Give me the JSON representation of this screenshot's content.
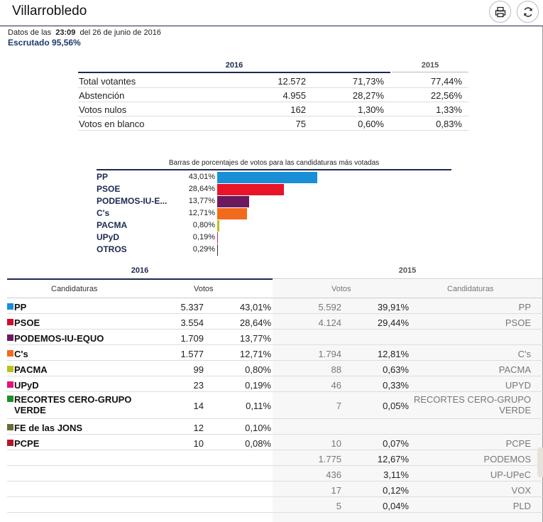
{
  "header": {
    "title": "Villarrobledo",
    "print_icon": "printer-icon",
    "refresh_icon": "refresh-icon"
  },
  "meta": {
    "prefix": "Datos de las",
    "time": "23:09",
    "date_text": "del 26 de junio de 2016",
    "scrutiny": "Escrutado 95,56%"
  },
  "summary": {
    "year_2016": "2016",
    "year_2015": "2015",
    "rows": [
      {
        "label": "Total votantes",
        "votes": "12.572",
        "pct_2016": "71,73%",
        "pct_2015": "77,44%"
      },
      {
        "label": "Abstención",
        "votes": "4.955",
        "pct_2016": "28,27%",
        "pct_2015": "22,56%"
      },
      {
        "label": "Votos nulos",
        "votes": "162",
        "pct_2016": "1,30%",
        "pct_2015": "1,33%"
      },
      {
        "label": "Votos en blanco",
        "votes": "75",
        "pct_2016": "0,60%",
        "pct_2015": "0,83%"
      }
    ]
  },
  "bars": {
    "title": "Barras de porcentajes de votos para las candidaturas más votadas",
    "items": [
      {
        "label": "PP",
        "pct": "43,01%",
        "value": 43.01,
        "color": "#1a8fd8"
      },
      {
        "label": "PSOE",
        "pct": "28,64%",
        "value": 28.64,
        "color": "#e8142a"
      },
      {
        "label": "PODEMOS-IU-E...",
        "pct": "13,77%",
        "value": 13.77,
        "color": "#6b1a5e"
      },
      {
        "label": "C's",
        "pct": "12,71%",
        "value": 12.71,
        "color": "#f26a1b"
      },
      {
        "label": "PACMA",
        "pct": "0,80%",
        "value": 0.8,
        "color": "#b8c21a"
      },
      {
        "label": "UPyD",
        "pct": "0,19%",
        "value": 0.19,
        "color": "#e0157a"
      },
      {
        "label": "OTROS",
        "pct": "0,29%",
        "value": 0.29,
        "color": "#333333"
      }
    ]
  },
  "results": {
    "year_2016": "2016",
    "year_2015": "2015",
    "col_candidaturas": "Candidaturas",
    "col_votos": "Votos",
    "col_votos_2015": "Votos",
    "col_candidaturas_2015": "Candidaturas",
    "rows": [
      {
        "party": "PP",
        "color": "#1a8fd8",
        "votes": "5.337",
        "pct": "43,01%",
        "votes_2015": "5.592",
        "pct_2015": "39,91%",
        "party_2015": "PP"
      },
      {
        "party": "PSOE",
        "color": "#c8102e",
        "votes": "3.554",
        "pct": "28,64%",
        "votes_2015": "4.124",
        "pct_2015": "29,44%",
        "party_2015": "PSOE"
      },
      {
        "party": "PODEMOS-IU-EQUO",
        "color": "#6b1a5e",
        "votes": "1.709",
        "pct": "13,77%",
        "votes_2015": "",
        "pct_2015": "",
        "party_2015": ""
      },
      {
        "party": "C's",
        "color": "#f26a1b",
        "votes": "1.577",
        "pct": "12,71%",
        "votes_2015": "1.794",
        "pct_2015": "12,81%",
        "party_2015": "C's"
      },
      {
        "party": "PACMA",
        "color": "#b8c21a",
        "votes": "99",
        "pct": "0,80%",
        "votes_2015": "88",
        "pct_2015": "0,63%",
        "party_2015": "PACMA"
      },
      {
        "party": "UPyD",
        "color": "#e0157a",
        "votes": "23",
        "pct": "0,19%",
        "votes_2015": "46",
        "pct_2015": "0,33%",
        "party_2015": "UPYD"
      },
      {
        "party": "RECORTES CERO-GRUPO",
        "party_line2": "VERDE",
        "color": "#1a8f2a",
        "votes": "14",
        "pct": "0,11%",
        "votes_2015": "7",
        "pct_2015": "0,05%",
        "party_2015": "RECORTES CERO-GRUPO",
        "party_2015_line2": "VERDE"
      },
      {
        "party": "FE de las JONS",
        "color": "#6b6b3a",
        "votes": "12",
        "pct": "0,10%",
        "votes_2015": "",
        "pct_2015": "",
        "party_2015": ""
      },
      {
        "party": "PCPE",
        "color": "#b0182a",
        "votes": "10",
        "pct": "0,08%",
        "votes_2015": "10",
        "pct_2015": "0,07%",
        "party_2015": "PCPE"
      },
      {
        "party": "",
        "color": "",
        "votes": "",
        "pct": "",
        "votes_2015": "1.775",
        "pct_2015": "12,67%",
        "party_2015": "PODEMOS"
      },
      {
        "party": "",
        "color": "",
        "votes": "",
        "pct": "",
        "votes_2015": "436",
        "pct_2015": "3,11%",
        "party_2015": "UP-UPeC"
      },
      {
        "party": "",
        "color": "",
        "votes": "",
        "pct": "",
        "votes_2015": "17",
        "pct_2015": "0,12%",
        "party_2015": "VOX"
      },
      {
        "party": "",
        "color": "",
        "votes": "",
        "pct": "",
        "votes_2015": "5",
        "pct_2015": "0,04%",
        "party_2015": "PLD"
      }
    ]
  }
}
